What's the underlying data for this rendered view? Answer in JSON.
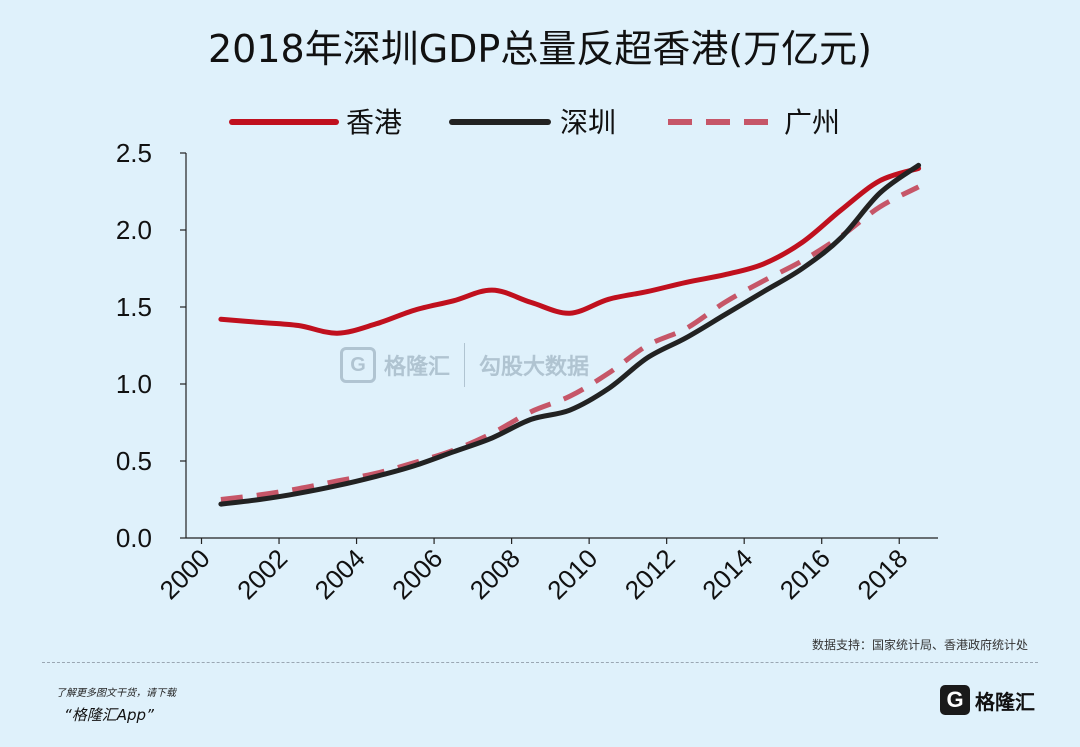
{
  "chart_data": {
    "type": "line",
    "title": "2018年深圳GDP总量反超香港(万亿元)",
    "x_ticks": [
      "2000",
      "2002",
      "2004",
      "2006",
      "2008",
      "2010",
      "2012",
      "2014",
      "2016",
      "2018"
    ],
    "y_ticks": [
      "0.0",
      "0.5",
      "1.0",
      "1.5",
      "2.0",
      "2.5"
    ],
    "xlim": [
      1999.6,
      2019.0
    ],
    "ylim": [
      0,
      2.5
    ],
    "legend_position": "top",
    "series": [
      {
        "name": "香港",
        "color": "#c0101e",
        "style": "solid",
        "x": [
          2000.5,
          2001.5,
          2002.5,
          2003.5,
          2004.5,
          2005.5,
          2006.5,
          2007.5,
          2008.5,
          2009.5,
          2010.5,
          2011.5,
          2012.5,
          2013.5,
          2014.5,
          2015.5,
          2016.5,
          2017.5,
          2018.5
        ],
        "values": [
          1.42,
          1.4,
          1.38,
          1.33,
          1.39,
          1.48,
          1.54,
          1.61,
          1.53,
          1.46,
          1.55,
          1.6,
          1.66,
          1.71,
          1.78,
          1.92,
          2.13,
          2.32,
          2.4
        ]
      },
      {
        "name": "深圳",
        "color": "#222222",
        "style": "solid",
        "x": [
          2000.5,
          2001.5,
          2002.5,
          2003.5,
          2004.5,
          2005.5,
          2006.5,
          2007.5,
          2008.5,
          2009.5,
          2010.5,
          2011.5,
          2012.5,
          2013.5,
          2014.5,
          2015.5,
          2016.5,
          2017.5,
          2018.5
        ],
        "values": [
          0.22,
          0.25,
          0.29,
          0.34,
          0.4,
          0.47,
          0.56,
          0.65,
          0.77,
          0.83,
          0.97,
          1.17,
          1.3,
          1.45,
          1.6,
          1.75,
          1.95,
          2.24,
          2.42
        ]
      },
      {
        "name": "广州",
        "color": "#c65668",
        "style": "dashed",
        "x": [
          2000.5,
          2001.5,
          2002.5,
          2003.5,
          2004.5,
          2005.5,
          2006.5,
          2007.5,
          2008.5,
          2009.5,
          2010.5,
          2011.5,
          2012.5,
          2013.5,
          2014.5,
          2015.5,
          2016.5,
          2017.5,
          2018.5
        ],
        "values": [
          0.25,
          0.28,
          0.32,
          0.37,
          0.42,
          0.49,
          0.57,
          0.68,
          0.82,
          0.92,
          1.07,
          1.25,
          1.36,
          1.53,
          1.67,
          1.8,
          1.96,
          2.15,
          2.28
        ]
      }
    ]
  },
  "source_text": "数据支持：国家统计局、香港政府统计处",
  "footer": {
    "line1": "了解更多图文干货，请下载",
    "line2": "“格隆汇App”"
  },
  "logo": {
    "mark": "G",
    "text": "格隆汇"
  },
  "watermark": {
    "mark": "G",
    "text": "格隆汇",
    "text2": "勾股大数据"
  },
  "colors": {
    "background": "#dff1fb"
  }
}
